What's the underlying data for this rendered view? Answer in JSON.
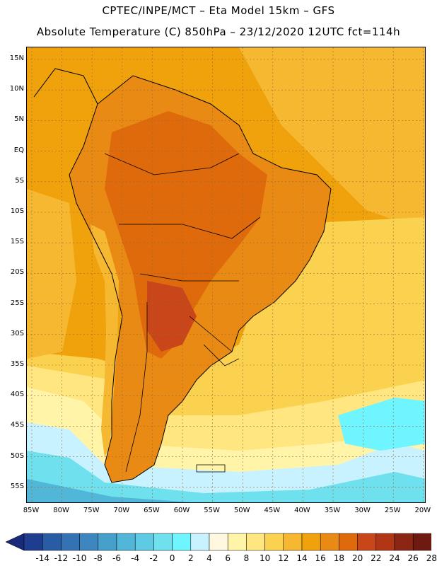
{
  "title": {
    "line1": "CPTEC/INPE/MCT –  Eta Model 15km – GFS",
    "line2": "Absolute Temperature (C) 850hPa – 23/12/2020 12UTC fct=114h"
  },
  "map": {
    "lat_labels": [
      "15N",
      "10N",
      "5N",
      "EQ",
      "5S",
      "10S",
      "15S",
      "20S",
      "25S",
      "30S",
      "35S",
      "40S",
      "45S",
      "50S",
      "55S"
    ],
    "lon_labels": [
      "85W",
      "80W",
      "75W",
      "70W",
      "65W",
      "60W",
      "55W",
      "50W",
      "45W",
      "40W",
      "35W",
      "30W",
      "25W",
      "20W"
    ]
  },
  "colorbar": {
    "labels": [
      "-14",
      "-12",
      "-10",
      "-8",
      "-6",
      "-4",
      "-2",
      "0",
      "2",
      "4",
      "6",
      "8",
      "10",
      "12",
      "14",
      "16",
      "18",
      "20",
      "22",
      "24",
      "26",
      "28"
    ],
    "colors": [
      "#1f3d8f",
      "#2a5ca3",
      "#3572b3",
      "#3d86bf",
      "#46a0cc",
      "#52b6d8",
      "#5fcae3",
      "#6ee0ee",
      "#6ff5ff",
      "#c8f2ff",
      "#fff8e0",
      "#fff4a8",
      "#ffe680",
      "#fbd24f",
      "#f5b830",
      "#f0a20c",
      "#e98a14",
      "#df6a0c",
      "#c8461a",
      "#b03616",
      "#8c2614",
      "#6e1a10"
    ],
    "left_arrow_color": "#1a2a7a",
    "right_arrow_color": "#5c0a24"
  }
}
